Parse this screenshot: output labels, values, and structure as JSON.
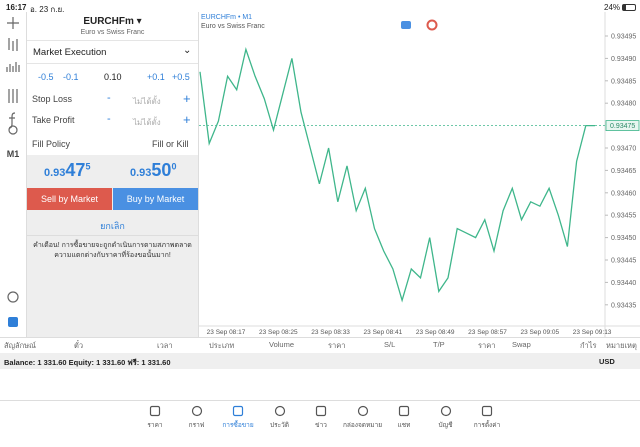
{
  "status_bar": {
    "time": "16:17",
    "date": "อ. 23 ก.ย.",
    "battery": "24%"
  },
  "toolbar": {
    "timeframe": "M1"
  },
  "order": {
    "symbol": "EURCHFm",
    "description": "Euro vs Swiss Franc",
    "execution": "Market Execution",
    "volume_down": [
      "-0.5",
      "-0.1"
    ],
    "volume": "0.10",
    "volume_up": [
      "+0.1",
      "+0.5"
    ],
    "stop_loss": {
      "label": "Stop Loss",
      "minus": "-",
      "value": "ไม่ได้ตั้ง",
      "plus": "+"
    },
    "take_profit": {
      "label": "Take Profit",
      "minus": "-",
      "value": "ไม่ได้ตั้ง",
      "plus": "+"
    },
    "fill_policy": {
      "label": "Fill Policy",
      "value": "Fill or Kill"
    },
    "bid": {
      "prefix": "0.93",
      "big": "47",
      "small": "5"
    },
    "ask": {
      "prefix": "0.93",
      "big": "50",
      "small": "0"
    },
    "sell": "Sell by Market",
    "buy": "Buy by Market",
    "cancel": "ยกเลิก",
    "warning": [
      "คำเตือน! การซื้อขายจะถูกดำเนินการตามสภาพตลาด",
      "ความแตกต่างกับราคาที่ร้องขอนั้นมาก!"
    ]
  },
  "chart": {
    "type": "line",
    "title": "EURCHFm • M1",
    "subtitle": "Euro vs Swiss Franc",
    "color": "#3fb68b",
    "xlabels": [
      "23 Sep 08:17",
      "23 Sep 08:25",
      "23 Sep 08:33",
      "23 Sep 08:41",
      "23 Sep 08:49",
      "23 Sep 08:57",
      "23 Sep 09:05",
      "23 Sep 09:13"
    ],
    "values": [
      0.93487,
      0.93471,
      0.93476,
      0.93486,
      0.93483,
      0.93492,
      0.93486,
      0.93481,
      0.93474,
      0.93482,
      0.9349,
      0.93478,
      0.9347,
      0.93462,
      0.9347,
      0.93458,
      0.93466,
      0.93456,
      0.93461,
      0.93452,
      0.93447,
      0.93443,
      0.93436,
      0.93443,
      0.93441,
      0.9345,
      0.93438,
      0.93441,
      0.93452,
      0.93451,
      0.9345,
      0.93454,
      0.93447,
      0.93456,
      0.93461,
      0.93454,
      0.93458,
      0.93457,
      0.93461,
      0.93455,
      0.93448,
      0.93467,
      0.93475,
      0.93475
    ],
    "ylim": [
      0.9343,
      0.935
    ],
    "yticks": [
      0.93495,
      {
        "value": 0.9349,
        "label": "0.93490"
      },
      0.93485,
      {
        "value": 0.9348,
        "label": "0.93480"
      },
      {
        "value": 0.9347,
        "label": "0.93470"
      },
      0.93465,
      {
        "value": 0.9346,
        "label": "0.93460"
      },
      0.93455,
      {
        "value": 0.9345,
        "label": "0.93450"
      },
      0.93445,
      {
        "value": 0.9344,
        "label": "0.93440"
      },
      0.93435
    ],
    "current_price": 0.93475
  },
  "positions": {
    "columns": [
      "สัญลักษณ์",
      "ตั๋ว",
      "เวลา",
      "ประเภท",
      "Volume",
      "ราคา",
      "S/L",
      "T/P",
      "ราคา",
      "Swap",
      "กำไร",
      "หมายเหตุ"
    ],
    "balance": "Balance: 1 331.60 Equity: 1 331.60 ฟรี: 1 331.60",
    "currency": "USD"
  },
  "tabs": [
    "ราคา",
    "กราฟ",
    "การซื้อขาย",
    "ประวัติ",
    "ข่าว",
    "กล่องจดหมาย",
    "แชท",
    "บัญชี",
    "การตั้งค่า"
  ],
  "active_tab": 2
}
